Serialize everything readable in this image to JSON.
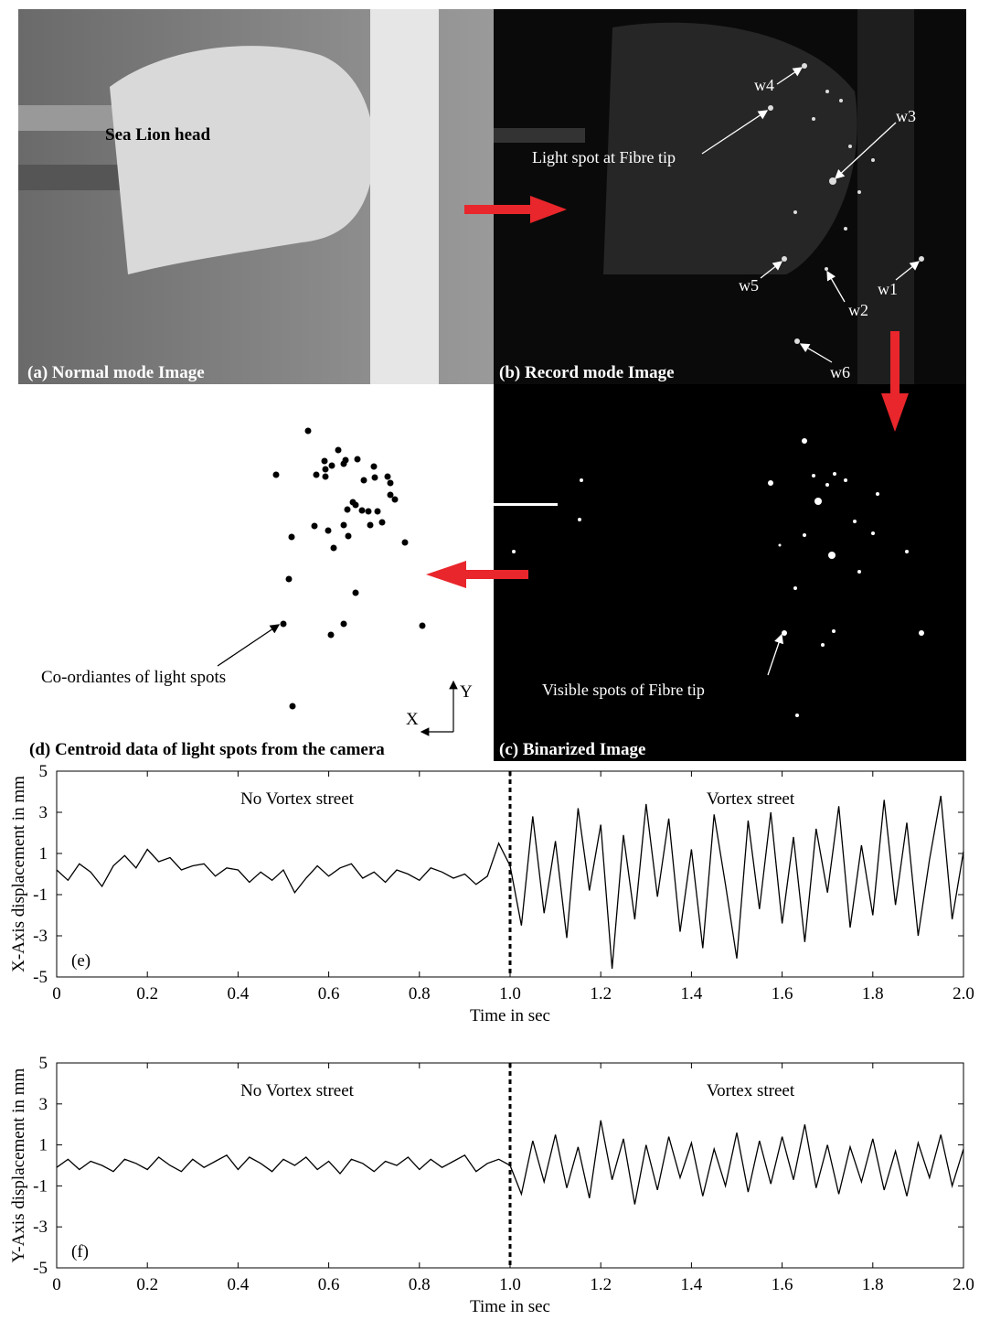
{
  "figure": {
    "panel_a": {
      "label": "(a) Normal mode Image",
      "subject": "Sea Lion head"
    },
    "panel_b": {
      "label": "(b) Record mode Image",
      "callout": "Light spot at Fibre tip",
      "whiskers": [
        "w1",
        "w2",
        "w3",
        "w4",
        "w5",
        "w6"
      ]
    },
    "panel_c": {
      "label": "(c) Binarized Image",
      "callout": "Visible spots of Fibre tip"
    },
    "panel_d": {
      "label": "(d) Centroid data of light spots from the camera",
      "callout": "Co-ordiantes of light spots",
      "axis_x": "X",
      "axis_y": "Y"
    }
  },
  "chart_data": [
    {
      "type": "line",
      "panel_label": "(e)",
      "xlabel": "Time in sec",
      "ylabel": "X-Axis displacement in mm",
      "annotations": [
        "No Vortex street",
        "Vortex street"
      ],
      "divider": 1,
      "xlim": [
        0,
        2
      ],
      "ylim": [
        -5,
        5
      ],
      "yticks": [
        -5,
        -3,
        -1,
        1,
        3,
        5
      ],
      "xticks": [
        0,
        0.2,
        0.4,
        0.6,
        0.8,
        {
          "value": 1,
          "label": "1.0"
        },
        1.2,
        1.4,
        1.6,
        1.8,
        {
          "value": 2,
          "label": "2.0"
        }
      ],
      "color": "#000000",
      "x": [
        0,
        0.025,
        0.05,
        0.075,
        0.1,
        0.125,
        0.15,
        0.175,
        0.2,
        0.225,
        0.25,
        0.275,
        0.3,
        0.325,
        0.35,
        0.375,
        0.4,
        0.425,
        0.45,
        0.475,
        0.5,
        0.525,
        0.55,
        0.575,
        0.6,
        0.625,
        0.65,
        0.675,
        0.7,
        0.725,
        0.75,
        0.775,
        0.8,
        0.825,
        0.85,
        0.875,
        0.9,
        0.925,
        0.95,
        0.975,
        1,
        1.025,
        1.05,
        1.075,
        1.1,
        1.125,
        1.15,
        1.175,
        1.2,
        1.225,
        1.25,
        1.275,
        1.3,
        1.325,
        1.35,
        1.375,
        1.4,
        1.425,
        1.45,
        1.475,
        1.5,
        1.525,
        1.55,
        1.575,
        1.6,
        1.625,
        1.65,
        1.675,
        1.7,
        1.725,
        1.75,
        1.775,
        1.8,
        1.825,
        1.85,
        1.875,
        1.9,
        1.925,
        1.95,
        1.975,
        2
      ],
      "values": [
        0.2,
        -0.3,
        0.5,
        0.1,
        -0.6,
        0.4,
        0.9,
        0.3,
        1.2,
        0.6,
        0.8,
        0.2,
        0.4,
        0.5,
        -0.1,
        0.3,
        0.2,
        -0.4,
        0.1,
        -0.3,
        0.2,
        -0.9,
        -0.2,
        0.4,
        -0.1,
        0.3,
        0.5,
        -0.2,
        0.1,
        -0.4,
        0.2,
        0.0,
        -0.3,
        0.3,
        0.1,
        -0.2,
        0.0,
        -0.5,
        -0.1,
        1.5,
        0.4,
        -2.5,
        2.8,
        -1.9,
        1.6,
        -3.1,
        3.2,
        -0.8,
        2.4,
        -4.6,
        1.9,
        -2.2,
        3.4,
        -1.1,
        2.7,
        -2.8,
        1.2,
        -3.6,
        2.9,
        -0.5,
        -4.1,
        2.6,
        -1.7,
        3.0,
        -2.4,
        1.8,
        -3.3,
        2.2,
        -0.9,
        3.3,
        -2.6,
        1.4,
        -2.0,
        3.6,
        -1.5,
        2.5,
        -3.0,
        0.7,
        3.8,
        -2.2,
        1.1
      ]
    },
    {
      "type": "line",
      "panel_label": "(f)",
      "xlabel": "Time in sec",
      "ylabel": "Y-Axis displacement in mm",
      "annotations": [
        "No Vortex street",
        "Vortex street"
      ],
      "divider": 1,
      "xlim": [
        0,
        2
      ],
      "ylim": [
        -5,
        5
      ],
      "yticks": [
        -5,
        -3,
        -1,
        1,
        3,
        5
      ],
      "xticks": [
        0,
        0.2,
        0.4,
        0.6,
        0.8,
        {
          "value": 1,
          "label": "1.0"
        },
        1.2,
        1.4,
        1.6,
        1.8,
        {
          "value": 2,
          "label": "2.0"
        }
      ],
      "color": "#000000",
      "x": [
        0,
        0.025,
        0.05,
        0.075,
        0.1,
        0.125,
        0.15,
        0.175,
        0.2,
        0.225,
        0.25,
        0.275,
        0.3,
        0.325,
        0.35,
        0.375,
        0.4,
        0.425,
        0.45,
        0.475,
        0.5,
        0.525,
        0.55,
        0.575,
        0.6,
        0.625,
        0.65,
        0.675,
        0.7,
        0.725,
        0.75,
        0.775,
        0.8,
        0.825,
        0.85,
        0.875,
        0.9,
        0.925,
        0.95,
        0.975,
        1,
        1.025,
        1.05,
        1.075,
        1.1,
        1.125,
        1.15,
        1.175,
        1.2,
        1.225,
        1.25,
        1.275,
        1.3,
        1.325,
        1.35,
        1.375,
        1.4,
        1.425,
        1.45,
        1.475,
        1.5,
        1.525,
        1.55,
        1.575,
        1.6,
        1.625,
        1.65,
        1.675,
        1.7,
        1.725,
        1.75,
        1.775,
        1.8,
        1.825,
        1.85,
        1.875,
        1.9,
        1.925,
        1.95,
        1.975,
        2
      ],
      "values": [
        -0.1,
        0.3,
        -0.2,
        0.2,
        0.0,
        -0.3,
        0.3,
        0.1,
        -0.2,
        0.4,
        0.0,
        -0.3,
        0.3,
        -0.1,
        0.2,
        0.5,
        -0.2,
        0.4,
        0.1,
        -0.3,
        0.3,
        0.0,
        0.4,
        -0.2,
        0.2,
        -0.4,
        0.3,
        0.1,
        -0.3,
        0.2,
        0.0,
        0.4,
        -0.2,
        0.3,
        -0.1,
        0.2,
        0.5,
        -0.3,
        0.1,
        0.3,
        0.0,
        -1.4,
        1.2,
        -0.8,
        1.5,
        -1.1,
        0.9,
        -1.6,
        2.2,
        -0.7,
        1.3,
        -1.9,
        1.0,
        -1.2,
        1.4,
        -0.6,
        1.1,
        -1.5,
        0.8,
        -1.0,
        1.6,
        -1.3,
        1.2,
        -0.9,
        1.4,
        -0.7,
        2.0,
        -1.1,
        1.0,
        -1.4,
        0.9,
        -0.8,
        1.3,
        -1.2,
        0.7,
        -1.5,
        1.1,
        -0.6,
        1.5,
        -1.0,
        0.8
      ]
    }
  ]
}
